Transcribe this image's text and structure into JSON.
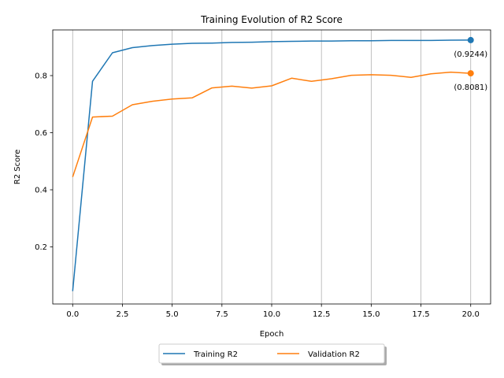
{
  "chart_data": {
    "type": "line",
    "title": "Training Evolution of R2 Score",
    "xlabel": "Epoch",
    "ylabel": "R2 Score",
    "xlim": [
      -1.0,
      21.0
    ],
    "ylim": [
      0.0,
      0.96
    ],
    "xticks": [
      "0.0",
      "2.5",
      "5.0",
      "7.5",
      "10.0",
      "12.5",
      "15.0",
      "17.5",
      "20.0"
    ],
    "yticks": [
      "0.2",
      "0.4",
      "0.6",
      "0.8"
    ],
    "grid": "vertical",
    "legend_position": "bottom-center",
    "x": [
      0,
      1,
      2,
      3,
      4,
      5,
      6,
      7,
      8,
      9,
      10,
      11,
      12,
      13,
      14,
      15,
      16,
      17,
      18,
      19,
      20
    ],
    "series": [
      {
        "name": "Training R2",
        "color": "#1f77b4",
        "values": [
          0.045,
          0.78,
          0.88,
          0.898,
          0.905,
          0.91,
          0.913,
          0.914,
          0.916,
          0.917,
          0.919,
          0.92,
          0.921,
          0.921,
          0.922,
          0.922,
          0.923,
          0.923,
          0.923,
          0.924,
          0.9244
        ]
      },
      {
        "name": "Validation R2",
        "color": "#ff7f0e",
        "values": [
          0.445,
          0.655,
          0.658,
          0.698,
          0.71,
          0.718,
          0.722,
          0.757,
          0.763,
          0.756,
          0.764,
          0.791,
          0.78,
          0.789,
          0.801,
          0.803,
          0.801,
          0.794,
          0.806,
          0.812,
          0.8081
        ]
      }
    ],
    "annotations": [
      {
        "text": "(0.9244)",
        "x": 20,
        "y": 0.9244,
        "series": 0
      },
      {
        "text": "(0.8081)",
        "x": 20,
        "y": 0.8081,
        "series": 1
      }
    ]
  }
}
